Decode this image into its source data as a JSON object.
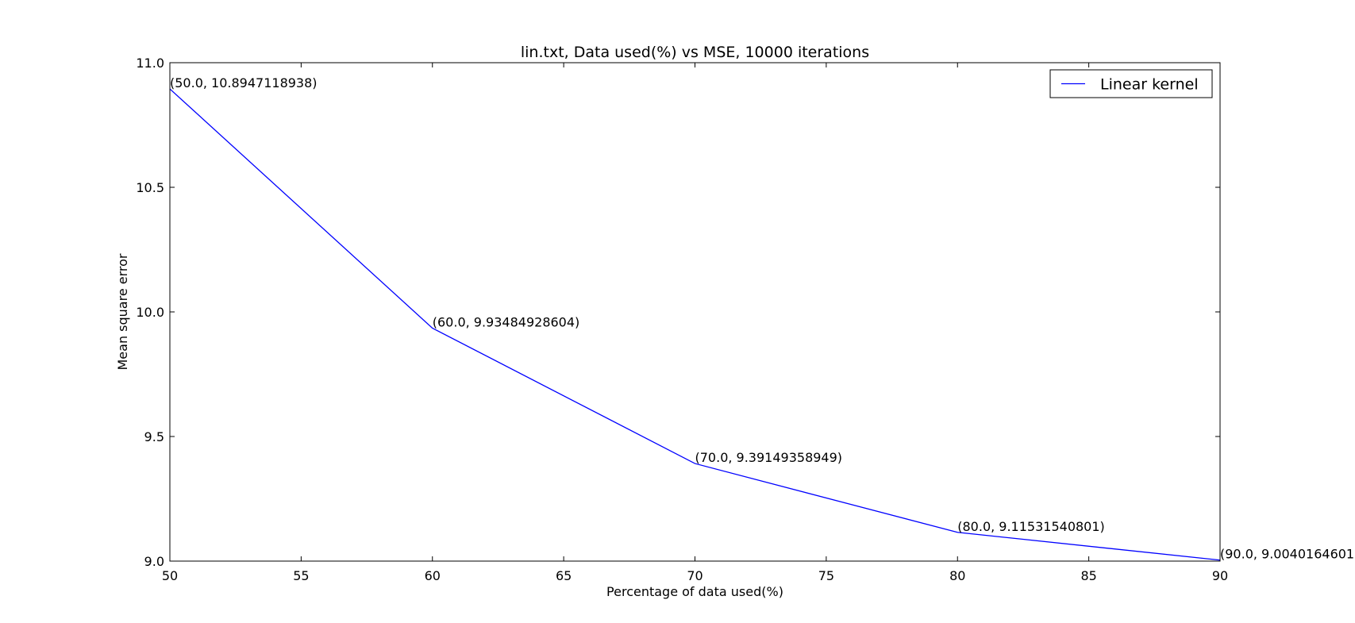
{
  "chart_data": {
    "type": "line",
    "title": "lin.txt, Data used(%) vs MSE, 10000 iterations",
    "xlabel": "Percentage of data used(%)",
    "ylabel": "Mean square error",
    "xlim": [
      50,
      90
    ],
    "ylim": [
      9.0,
      11.0
    ],
    "xticks": [
      50,
      55,
      60,
      65,
      70,
      75,
      80,
      85,
      90
    ],
    "yticks": [
      9.0,
      9.5,
      10.0,
      10.5,
      11.0
    ],
    "xtick_labels": [
      "50",
      "55",
      "60",
      "65",
      "70",
      "75",
      "80",
      "85",
      "90"
    ],
    "ytick_labels": [
      "9.0",
      "9.5",
      "10.0",
      "10.5",
      "11.0"
    ],
    "grid": false,
    "legend_position": "top-right",
    "series": [
      {
        "name": "Linear kernel",
        "color": "#0000ff",
        "x": [
          50,
          60,
          70,
          80,
          90
        ],
        "y": [
          10.8947118938,
          9.93484928604,
          9.39149358949,
          9.11531540801,
          9.0040164601
        ]
      }
    ],
    "annotations": [
      "(50.0, 10.8947118938)",
      "(60.0, 9.93484928604)",
      "(70.0, 9.39149358949)",
      "(80.0, 9.11531540801)",
      "(90.0, 9.0040164601"
    ]
  }
}
